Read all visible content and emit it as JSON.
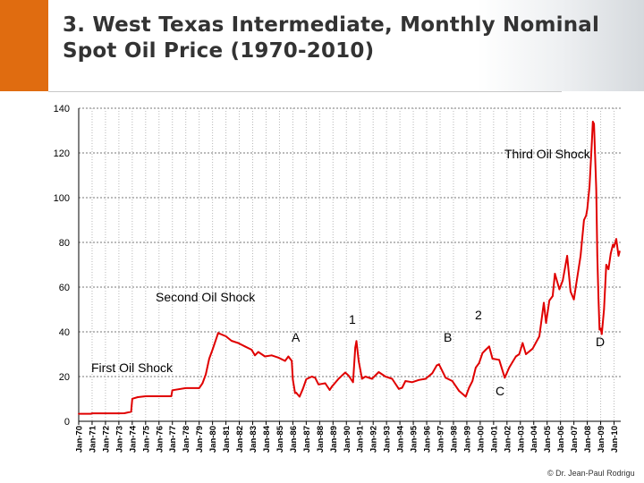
{
  "title": "3. West Texas Intermediate, Monthly Nominal Spot Oil Price (1970-2010)",
  "credit": "© Dr. Jean-Paul Rodrigu",
  "chart_data": {
    "type": "line",
    "title": "3. West Texas Intermediate, Monthly Nominal Spot Oil Price (1970-2010)",
    "xlabel": "",
    "ylabel": "",
    "ylim": [
      0,
      140
    ],
    "yticks": [
      0,
      20,
      40,
      60,
      80,
      100,
      120,
      140
    ],
    "grid": true,
    "legend": "none",
    "line_color": "#e00000",
    "x_tick_labels": [
      "Jan-70",
      "Jan-71",
      "Jan-72",
      "Jan-73",
      "Jan-74",
      "Jan-75",
      "Jan-76",
      "Jan-77",
      "Jan-78",
      "Jan-79",
      "Jan-80",
      "Jan-81",
      "Jan-82",
      "Jan-83",
      "Jan-84",
      "Jan-85",
      "Jan-86",
      "Jan-87",
      "Jan-88",
      "Jan-89",
      "Jan-90",
      "Jan-91",
      "Jan-92",
      "Jan-93",
      "Jan-94",
      "Jan-95",
      "Jan-96",
      "Jan-97",
      "Jan-98",
      "Jan-99",
      "Jan-00",
      "Jan-01",
      "Jan-02",
      "Jan-03",
      "Jan-04",
      "Jan-05",
      "Jan-06",
      "Jan-07",
      "Jan-08",
      "Jan-09",
      "Jan-10"
    ],
    "series": [
      {
        "x": [
          "1970-01",
          "1970-12",
          "1971-01",
          "1972-12",
          "1973-06",
          "1973-12",
          "1974-01",
          "1974-06",
          "1975-01",
          "1975-12",
          "1976-01",
          "1976-12",
          "1977-01",
          "1978-01",
          "1978-12",
          "1979-01",
          "1979-04",
          "1979-07",
          "1979-10",
          "1980-01",
          "1980-06",
          "1981-01",
          "1981-06",
          "1981-12",
          "1982-06",
          "1982-12",
          "1983-03",
          "1983-06",
          "1983-12",
          "1984-06",
          "1984-12",
          "1985-06",
          "1985-09",
          "1985-12",
          "1986-01",
          "1986-03",
          "1986-04",
          "1986-07",
          "1986-10",
          "1987-01",
          "1987-06",
          "1987-09",
          "1987-12",
          "1988-06",
          "1988-10",
          "1988-12",
          "1989-06",
          "1989-12",
          "1990-03",
          "1990-07",
          "1990-09",
          "1990-10",
          "1990-12",
          "1991-03",
          "1991-06",
          "1991-12",
          "1992-06",
          "1992-12",
          "1993-06",
          "1993-12",
          "1994-03",
          "1994-06",
          "1994-12",
          "1995-06",
          "1995-12",
          "1996-06",
          "1996-10",
          "1996-12",
          "1997-06",
          "1997-12",
          "1998-06",
          "1998-12",
          "1999-03",
          "1999-06",
          "1999-09",
          "1999-12",
          "2000-03",
          "2000-06",
          "2000-09",
          "2000-12",
          "2001-06",
          "2001-11",
          "2002-03",
          "2002-06",
          "2002-09",
          "2002-12",
          "2003-03",
          "2003-06",
          "2003-12",
          "2004-06",
          "2004-10",
          "2004-12",
          "2005-03",
          "2005-06",
          "2005-08",
          "2005-12",
          "2006-03",
          "2006-07",
          "2006-10",
          "2007-01",
          "2007-03",
          "2007-07",
          "2007-10",
          "2007-12",
          "2008-01",
          "2008-03",
          "2008-05",
          "2008-06",
          "2008-07",
          "2008-09",
          "2008-10",
          "2008-11",
          "2008-12",
          "2009-01",
          "2009-02",
          "2009-04",
          "2009-06",
          "2009-08",
          "2009-10",
          "2009-12",
          "2010-01",
          "2010-03",
          "2010-05",
          "2010-06"
        ],
        "values": [
          3.35,
          3.35,
          3.56,
          3.56,
          3.6,
          4.3,
          10.1,
          10.8,
          11.2,
          11.2,
          11.2,
          11.2,
          13.9,
          14.85,
          14.85,
          14.85,
          17,
          21,
          28,
          32,
          39.5,
          38,
          36,
          35,
          33.5,
          32,
          29.5,
          31,
          29,
          29.5,
          28.5,
          27,
          29,
          27,
          18.7,
          12.6,
          12.8,
          11,
          14.5,
          18.8,
          20,
          19.5,
          16.5,
          17,
          14,
          15.5,
          19,
          21.8,
          20.4,
          17.5,
          33,
          35.9,
          27,
          19,
          20,
          19,
          22,
          20,
          19,
          14.5,
          15,
          18,
          17.5,
          18.5,
          19,
          21.5,
          25,
          25.5,
          19.5,
          18,
          13.6,
          11,
          15,
          18,
          24,
          26,
          30.5,
          32,
          33.5,
          28,
          27.5,
          19.5,
          24,
          26.5,
          29,
          30,
          35,
          30,
          32.5,
          38,
          53,
          44,
          54,
          56,
          66,
          59,
          63,
          74,
          58,
          54.5,
          61,
          74,
          90,
          92,
          95,
          105,
          124,
          134,
          133,
          104,
          74,
          55,
          41,
          41.5,
          39,
          50,
          70,
          68,
          75,
          79,
          78,
          81.5,
          74,
          76
        ]
      }
    ],
    "annotations": [
      {
        "text": "Third Oil Shock"
      },
      {
        "text": "Second Oil Shock"
      },
      {
        "text": "First Oil Shock"
      },
      {
        "text": "1"
      },
      {
        "text": "2"
      },
      {
        "text": "A"
      },
      {
        "text": "B"
      },
      {
        "text": "C"
      },
      {
        "text": "D"
      }
    ]
  }
}
